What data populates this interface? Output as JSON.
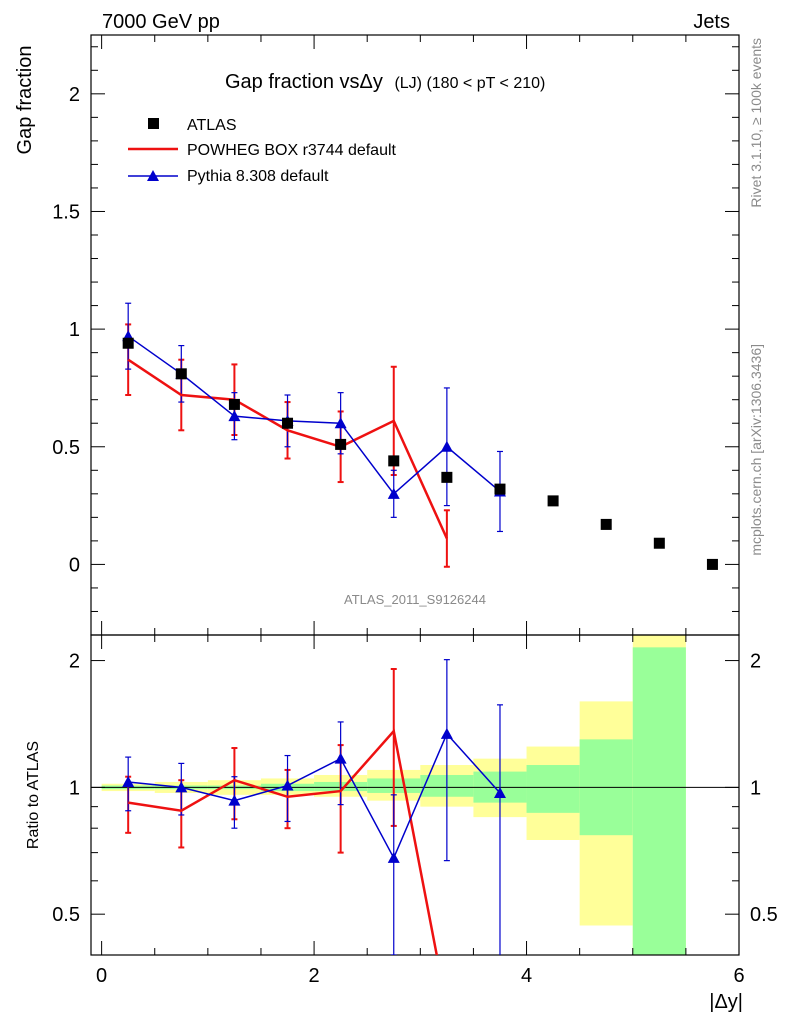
{
  "header": {
    "top_left": "7000 GeV pp",
    "top_right": "Jets"
  },
  "side": {
    "rivet": "Rivet 3.1.10, ≥ 100k events",
    "mcplots": "mcplots.cern.ch [arXiv:1306.3436]"
  },
  "watermark": "ATLAS_2011_S9126244",
  "colors": {
    "atlas": "#000000",
    "powheg": "#ee1111",
    "pythia": "#0000cc",
    "band_inner": "#99ff99",
    "band_outer": "#ffff99"
  },
  "chart_data": [
    {
      "type": "line",
      "title": "Gap fraction vsΔy",
      "title_suffix": "(LJ) (180 < pT < 210)",
      "ylabel": "Gap fraction",
      "xlabel": "",
      "xlim": [
        -0.1,
        6.0
      ],
      "ylim": [
        -0.3,
        2.25
      ],
      "yticks": [
        0,
        0.5,
        1,
        1.5,
        2
      ],
      "ytick_labels": [
        "0",
        "0.5",
        "1",
        "1.5",
        "2"
      ],
      "legend_position": "top-left",
      "series": [
        {
          "name": "ATLAS",
          "style": "markers",
          "x": [
            0.25,
            0.75,
            1.25,
            1.75,
            2.25,
            2.75,
            3.25,
            3.75,
            4.25,
            4.75,
            5.25,
            5.75
          ],
          "y": [
            0.94,
            0.81,
            0.68,
            0.6,
            0.51,
            0.44,
            0.37,
            0.32,
            0.27,
            0.17,
            0.09,
            0.0
          ]
        },
        {
          "name": "POWHEG BOX r3744 default",
          "style": "line",
          "x": [
            0.25,
            0.75,
            1.25,
            1.75,
            2.25,
            2.75,
            3.25
          ],
          "y": [
            0.87,
            0.72,
            0.7,
            0.57,
            0.5,
            0.61,
            0.11
          ],
          "err": [
            0.15,
            0.15,
            0.15,
            0.12,
            0.15,
            0.23,
            0.12
          ]
        },
        {
          "name": "Pythia 8.308 default",
          "style": "line-triangles",
          "x": [
            0.25,
            0.75,
            1.25,
            1.75,
            2.25,
            2.75,
            3.25,
            3.75
          ],
          "y": [
            0.97,
            0.81,
            0.63,
            0.61,
            0.6,
            0.3,
            0.5,
            0.31
          ],
          "err": [
            0.14,
            0.12,
            0.1,
            0.11,
            0.13,
            0.1,
            0.25,
            0.17
          ]
        }
      ]
    },
    {
      "type": "line",
      "title": "",
      "ylabel": "Ratio to ATLAS",
      "xlabel": "|Δy|",
      "xlim": [
        -0.1,
        6.0
      ],
      "ylim": [
        0.4,
        2.3
      ],
      "log_scale_y": true,
      "yticks": [
        0.5,
        1,
        2
      ],
      "ytick_labels": [
        "0.5",
        "1",
        "2"
      ],
      "xticks": [
        0,
        2,
        4,
        6
      ],
      "xtick_labels": [
        "0",
        "2",
        "4",
        "6"
      ],
      "bands": {
        "edges": [
          0.0,
          0.5,
          1.0,
          1.5,
          2.0,
          2.5,
          3.0,
          3.5,
          4.0,
          4.5,
          5.0,
          5.5
        ],
        "inner_lo": [
          0.99,
          0.99,
          0.99,
          0.98,
          0.98,
          0.97,
          0.95,
          0.92,
          0.87,
          0.77,
          0.3
        ],
        "inner_hi": [
          1.01,
          1.01,
          1.01,
          1.02,
          1.03,
          1.05,
          1.07,
          1.09,
          1.13,
          1.3,
          2.15
        ],
        "outer_lo": [
          0.98,
          0.97,
          0.96,
          0.96,
          0.95,
          0.93,
          0.9,
          0.85,
          0.75,
          0.47,
          0.3
        ],
        "outer_hi": [
          1.02,
          1.03,
          1.04,
          1.05,
          1.07,
          1.1,
          1.13,
          1.17,
          1.25,
          1.6,
          2.3
        ]
      },
      "series": [
        {
          "name": "POWHEG BOX r3744 default",
          "x": [
            0.25,
            0.75,
            1.25,
            1.75,
            2.25,
            2.75,
            3.25
          ],
          "y": [
            0.92,
            0.88,
            1.04,
            0.95,
            0.98,
            1.36,
            0.3
          ],
          "err": [
            0.14,
            0.16,
            0.2,
            0.15,
            0.28,
            0.55,
            0.0
          ]
        },
        {
          "name": "Pythia 8.308 default",
          "x": [
            0.25,
            0.75,
            1.25,
            1.75,
            2.25,
            2.75,
            3.25,
            3.75
          ],
          "y": [
            1.03,
            1.0,
            0.93,
            1.01,
            1.17,
            0.68,
            1.34,
            0.97
          ],
          "err": [
            0.15,
            0.14,
            0.13,
            0.18,
            0.26,
            0.28,
            0.67,
            0.6
          ]
        }
      ]
    }
  ]
}
